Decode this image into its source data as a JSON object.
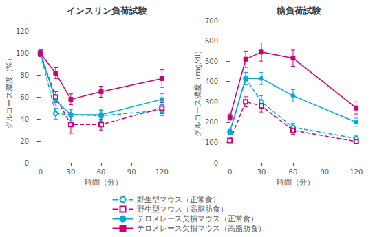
{
  "chart_data": [
    {
      "type": "line",
      "title": "インスリン負荷試験",
      "x_label": "時間（分）",
      "y_label": "グルコース濃度（%）",
      "x": [
        0,
        15,
        30,
        60,
        120
      ],
      "xlim": [
        -6,
        130
      ],
      "xticks": [
        0,
        30,
        60,
        90,
        120
      ],
      "ylim": [
        0,
        130
      ],
      "yticks": [
        0,
        20,
        40,
        60,
        80,
        100,
        120
      ],
      "grid": false,
      "legend": "bottom",
      "series": [
        {
          "name": "野生型マウス（正常食）",
          "color": "#00aadd",
          "line_style": "dashed",
          "marker": "open-circle",
          "values": [
            100,
            45,
            44,
            43,
            48
          ],
          "yerr": [
            3,
            5,
            5,
            5,
            5
          ]
        },
        {
          "name": "野生型マウス（高脂肪食）",
          "color": "#cc0077",
          "line_style": "dashed",
          "marker": "open-square",
          "values": [
            100,
            60,
            35,
            35,
            50
          ],
          "yerr": [
            3,
            5,
            8,
            5,
            5
          ]
        },
        {
          "name": "テロメレース欠損マウス（正常食）",
          "color": "#00aadd",
          "line_style": "solid",
          "marker": "circle",
          "values": [
            100,
            57,
            44,
            44,
            58
          ],
          "yerr": [
            3,
            5,
            5,
            5,
            5
          ]
        },
        {
          "name": "テロメレース欠損マウス（高脂肪食）",
          "color": "#cc0077",
          "line_style": "solid",
          "marker": "square",
          "values": [
            100,
            82,
            58,
            65,
            77
          ],
          "yerr": [
            3,
            5,
            5,
            5,
            8
          ]
        }
      ]
    },
    {
      "type": "line",
      "title": "糖負荷試験",
      "x_label": "時間（分）",
      "y_label": "グルコース濃度（mg/dl）",
      "x": [
        0,
        15,
        30,
        60,
        120
      ],
      "xlim": [
        -6,
        130
      ],
      "xticks": [
        0,
        30,
        60,
        90,
        120
      ],
      "ylim": [
        0,
        700
      ],
      "yticks": [
        0,
        100,
        200,
        300,
        400,
        500,
        600,
        700
      ],
      "grid": false,
      "legend": "bottom",
      "series": [
        {
          "name": "野生型マウス（正常食）",
          "color": "#00aadd",
          "line_style": "dashed",
          "marker": "open-circle",
          "values": [
            150,
            415,
            300,
            175,
            120
          ],
          "yerr": [
            10,
            30,
            30,
            20,
            15
          ]
        },
        {
          "name": "野生型マウス（高脂肪食）",
          "color": "#cc0077",
          "line_style": "dashed",
          "marker": "open-square",
          "values": [
            110,
            300,
            280,
            160,
            105
          ],
          "yerr": [
            10,
            25,
            30,
            20,
            10
          ]
        },
        {
          "name": "テロメレース欠損マウス（正常食）",
          "color": "#00aadd",
          "line_style": "solid",
          "marker": "circle",
          "values": [
            155,
            415,
            415,
            330,
            200
          ],
          "yerr": [
            10,
            30,
            30,
            30,
            20
          ]
        },
        {
          "name": "テロメレース欠損マウス（高脂肪食）",
          "color": "#cc0077",
          "line_style": "solid",
          "marker": "square",
          "values": [
            225,
            510,
            545,
            515,
            270
          ],
          "yerr": [
            15,
            40,
            45,
            40,
            30
          ]
        }
      ]
    }
  ]
}
